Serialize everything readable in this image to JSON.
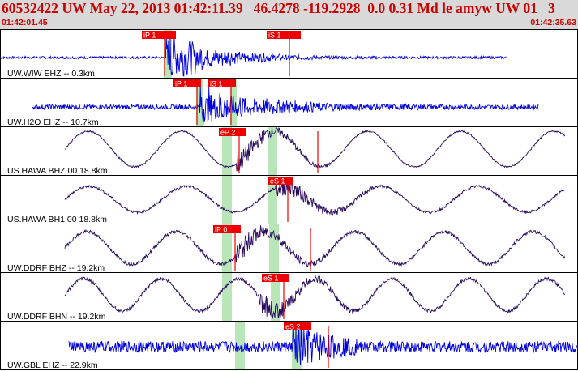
{
  "header": {
    "title": "60532422 UW May 22, 2013 01:42:11.39   46.4278 -119.2928  0.0 0.31 Md le amyw UW 01   3",
    "start_time": "01:42:01.45",
    "end_time": "01:42:35.63"
  },
  "colors": {
    "header_bg": "#d9d9d9",
    "header_text": "#cc0000",
    "trace_blue": "#0000dd",
    "trace_purple": "#2a0a5e",
    "pick_red": "#ee0000",
    "highlight_green": "#b8e6b8"
  },
  "traces": [
    {
      "label": "UW.WIW EHZ -- 0.3km",
      "picks": [
        "iP 1",
        "iS 1"
      ]
    },
    {
      "label": "UW.H2O EHZ -- 10.7km",
      "picks": [
        "iP 1",
        "iS 1"
      ]
    },
    {
      "label": "US.HAWA BHZ 00 18.8km",
      "picks": [
        "eP 2"
      ]
    },
    {
      "label": "US.HAWA BH1 00 18.8km",
      "picks": [
        "eS 1"
      ]
    },
    {
      "label": "UW.DDRF BHZ -- 19.2km",
      "picks": [
        "iP 0"
      ]
    },
    {
      "label": "UW.DDRF BHN -- 19.2km",
      "picks": [
        "eS 1"
      ]
    },
    {
      "label": "UW.GBL EHZ -- 22.9km",
      "picks": [
        "eS 2"
      ]
    }
  ]
}
